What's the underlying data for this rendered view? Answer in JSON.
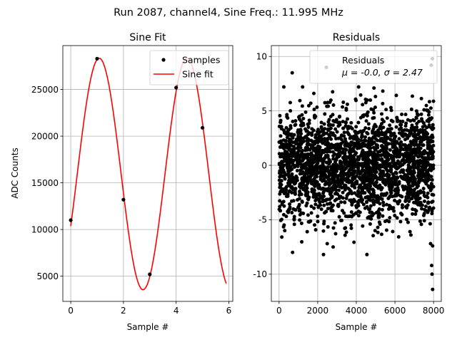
{
  "suptitle": "Run 2087, channel4, Sine Freq.: 11.995 MHz",
  "colors": {
    "samples": "#000000",
    "fit": "#ff0000",
    "residuals": "#000000",
    "grid": "#b0b0b0"
  },
  "chart_data": [
    {
      "type": "line",
      "title": "Sine Fit",
      "xlabel": "Sample #",
      "ylabel": "ADC Counts",
      "xlim": [
        -0.3,
        6.15
      ],
      "ylim": [
        2300,
        29700
      ],
      "xticks": [
        0,
        2,
        4,
        6
      ],
      "yticks": [
        5000,
        10000,
        15000,
        20000,
        25000
      ],
      "grid": true,
      "legend_placement": "top-right",
      "sine_fit": {
        "amplitude": 12400,
        "offset": 15950,
        "period": 3.33,
        "phase_sample": 1.08,
        "x_range": [
          0,
          5.9
        ]
      },
      "series": [
        {
          "name": "Samples",
          "style": "markers",
          "x": [
            0,
            1,
            2,
            3,
            4,
            5
          ],
          "y": [
            11000,
            28300,
            13200,
            5200,
            25200,
            20900
          ]
        },
        {
          "name": "Sine fit",
          "style": "line"
        }
      ]
    },
    {
      "type": "scatter",
      "title": "Residuals",
      "xlabel": "Sample #",
      "ylabel": "",
      "xlim": [
        -400,
        8400
      ],
      "ylim": [
        -12.5,
        11
      ],
      "xticks": [
        0,
        2000,
        4000,
        6000,
        8000
      ],
      "yticks": [
        -10,
        -5,
        0,
        5,
        10
      ],
      "grid": true,
      "legend_placement": "top-right",
      "series": [
        {
          "name": "Residuals",
          "legend_text": "μ = -0.0, σ = 2.47",
          "mu": -0.0,
          "sigma": 2.47,
          "x_range": [
            0,
            8000
          ],
          "outliers": [
            {
              "x": 7940,
              "y": 9.8
            },
            {
              "x": 7880,
              "y": 9.2
            },
            {
              "x": 2450,
              "y": 9.0
            },
            {
              "x": 680,
              "y": 8.5
            },
            {
              "x": 7950,
              "y": -11.4
            },
            {
              "x": 7920,
              "y": -10.0
            },
            {
              "x": 7900,
              "y": -9.2
            },
            {
              "x": 2300,
              "y": -8.2
            },
            {
              "x": 4550,
              "y": -8.2
            },
            {
              "x": 700,
              "y": -8.0
            },
            {
              "x": 2800,
              "y": -7.5
            },
            {
              "x": 7950,
              "y": -7.4
            }
          ]
        }
      ]
    }
  ]
}
